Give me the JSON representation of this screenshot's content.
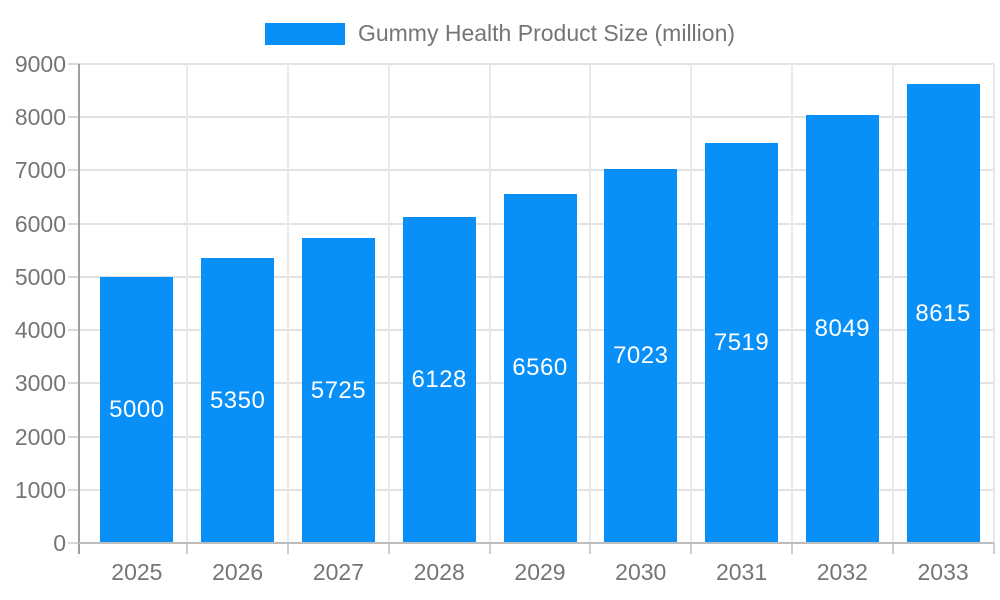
{
  "legend": {
    "items": [
      {
        "label": "Gummy Health Product Size (million)",
        "color": "#0890f8"
      }
    ]
  },
  "chart_data": {
    "type": "bar",
    "title": "Gummy Health Product Size (million)",
    "categories": [
      "2025",
      "2026",
      "2027",
      "2028",
      "2029",
      "2030",
      "2031",
      "2032",
      "2033"
    ],
    "values": [
      5000,
      5350,
      5725,
      6128,
      6560,
      7023,
      7519,
      8049,
      8615
    ],
    "xlabel": "",
    "ylabel": "",
    "ylim": [
      0,
      9000
    ],
    "ytick_step": 1000,
    "yticks": [
      0,
      1000,
      2000,
      3000,
      4000,
      5000,
      6000,
      7000,
      8000,
      9000
    ],
    "grid": true,
    "legend_position": "top",
    "bar_color": "#0890f8",
    "value_label_color": "#ffffff",
    "axis_text_color": "#757575",
    "value_labels_inside_bars": true
  }
}
